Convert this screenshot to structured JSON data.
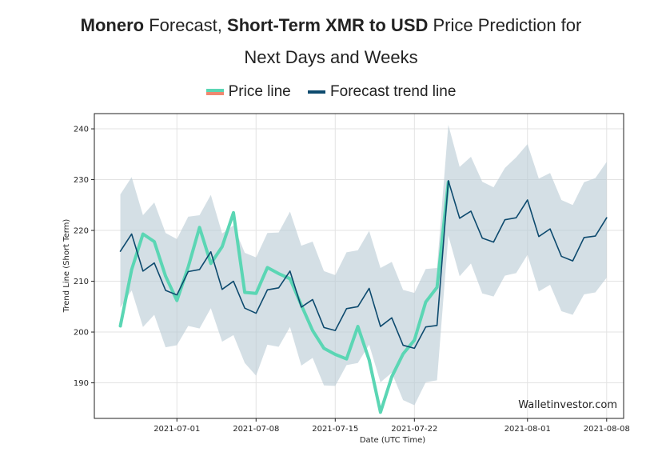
{
  "title": {
    "part1_bold": "Monero",
    "part2": " Forecast, ",
    "part3_bold": "Short-Term XMR to USD",
    "part4": " Price Prediction for",
    "line2": "Next Days and Weeks"
  },
  "legend": {
    "price": "Price line",
    "forecast": "Forecast trend line"
  },
  "watermark": "Walletinvestor.com",
  "colors": {
    "price": "#5bd6b4",
    "forecast": "#0d4a6e",
    "band": "#b8c9d3"
  },
  "chart_data": {
    "type": "line",
    "title": "Monero Forecast, Short-Term XMR to USD Price Prediction for Next Days and Weeks",
    "xlabel": "Date (UTC Time)",
    "ylabel": "Trend Line (Short Term)",
    "ylim": [
      183,
      243
    ],
    "x_start_day": 0,
    "xlim": [
      -2.3,
      44.5
    ],
    "x_note": "day index 0 = 2021-06-26",
    "xticks": [
      {
        "day": 5,
        "label": "2021-07-01"
      },
      {
        "day": 12,
        "label": "2021-07-08"
      },
      {
        "day": 19,
        "label": "2021-07-15"
      },
      {
        "day": 26,
        "label": "2021-07-22"
      },
      {
        "day": 36,
        "label": "2021-08-01"
      },
      {
        "day": 43,
        "label": "2021-08-08"
      }
    ],
    "yticks": [
      190,
      200,
      210,
      220,
      230,
      240
    ],
    "grid": true,
    "legend_position": "top-center",
    "series": [
      {
        "name": "Price line",
        "start_day": 0,
        "values": [
          201.2,
          212.3,
          219.3,
          217.8,
          211.0,
          206.2,
          212.8,
          220.6,
          213.5,
          216.8,
          223.5,
          207.8,
          207.6,
          212.7,
          211.5,
          210.5,
          205.3,
          200.3,
          196.8,
          195.6,
          194.7,
          201.1,
          194.5,
          184.2,
          191.2,
          195.7,
          198.4,
          205.9,
          208.8,
          229.5
        ]
      },
      {
        "name": "Forecast trend line",
        "start_day": 0,
        "values": [
          215.9,
          219.3,
          212.0,
          213.6,
          208.2,
          207.3,
          211.9,
          212.3,
          215.8,
          208.4,
          210.0,
          204.7,
          203.7,
          208.3,
          208.7,
          212.0,
          204.9,
          206.4,
          200.9,
          200.3,
          204.6,
          205.0,
          208.6,
          201.1,
          202.8,
          197.4,
          196.8,
          201.0,
          201.3,
          229.8,
          222.4,
          223.8,
          218.5,
          217.7,
          222.1,
          222.5,
          226.0,
          218.8,
          220.3,
          214.9,
          214.0,
          218.6,
          218.9,
          222.5
        ]
      }
    ],
    "band": {
      "name": "Forecast range",
      "upper": [
        227.1,
        230.5,
        223.0,
        225.5,
        219.5,
        218.3,
        222.7,
        223.0,
        227.0,
        219.4,
        221.0,
        215.6,
        214.7,
        219.5,
        219.6,
        223.7,
        217.0,
        217.8,
        212.0,
        211.2,
        215.7,
        216.1,
        219.9,
        212.6,
        213.8,
        208.3,
        207.7,
        212.4,
        212.6,
        240.8,
        232.5,
        234.5,
        229.6,
        228.5,
        232.3,
        234.4,
        237.0,
        230.2,
        231.3,
        226.0,
        225.0,
        229.5,
        230.3,
        233.5
      ],
      "lower": [
        204.8,
        208.2,
        201.0,
        203.4,
        197.0,
        197.4,
        201.2,
        200.7,
        204.7,
        198.1,
        199.4,
        193.9,
        191.4,
        197.5,
        197.1,
        201.0,
        193.4,
        194.9,
        189.5,
        189.4,
        193.5,
        193.9,
        197.5,
        190.1,
        192.0,
        186.6,
        185.6,
        190.1,
        190.5,
        219.0,
        211.0,
        213.5,
        207.6,
        207.0,
        211.1,
        211.6,
        215.2,
        208.0,
        209.3,
        204.1,
        203.4,
        207.4,
        207.8,
        210.7
      ]
    }
  }
}
